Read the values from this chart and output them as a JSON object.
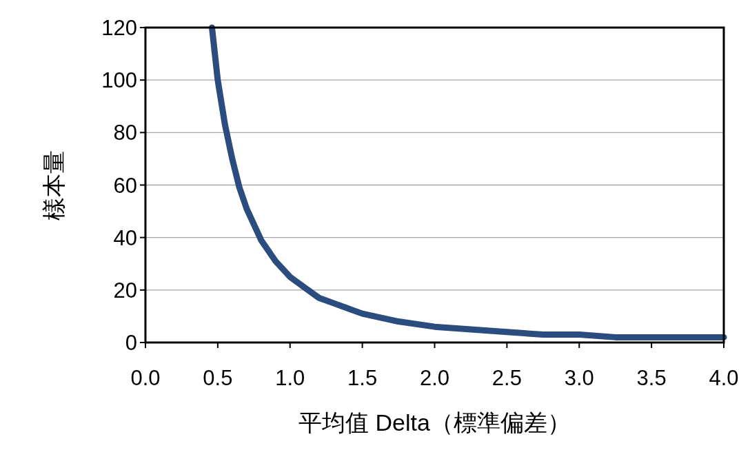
{
  "chart_data": {
    "type": "line",
    "xlabel": "平均值 Delta（標準偏差）",
    "ylabel": "樣本量",
    "x": [
      0.46,
      0.5,
      0.55,
      0.6,
      0.65,
      0.7,
      0.75,
      0.8,
      0.9,
      1.0,
      1.1,
      1.2,
      1.3,
      1.4,
      1.5,
      1.75,
      2.0,
      2.25,
      2.5,
      2.75,
      3.0,
      3.25,
      3.5,
      3.75,
      4.0
    ],
    "series": [
      {
        "color": "#2b4c7e",
        "values": [
          120,
          100,
          83,
          70,
          59,
          51,
          45,
          39,
          31,
          25,
          21,
          17,
          15,
          13,
          11,
          8,
          6,
          5,
          4,
          3,
          3,
          2,
          2,
          2,
          2
        ]
      }
    ],
    "xlim": [
      0,
      4
    ],
    "xticks": [
      {
        "value": 0,
        "label": "0.0"
      },
      {
        "value": 0.5,
        "label": "0.5"
      },
      {
        "value": 1,
        "label": "1.0"
      },
      {
        "value": 1.5,
        "label": "1.5"
      },
      {
        "value": 2,
        "label": "2.0"
      },
      {
        "value": 2.5,
        "label": "2.5"
      },
      {
        "value": 3,
        "label": "3.0"
      },
      {
        "value": 3.5,
        "label": "3.5"
      },
      {
        "value": 4,
        "label": "4.0"
      }
    ],
    "ylim": [
      0,
      120
    ],
    "yticks": [
      0,
      20,
      40,
      60,
      80,
      100,
      120
    ],
    "grid": "y",
    "line_style": "solid",
    "marker": "none"
  }
}
